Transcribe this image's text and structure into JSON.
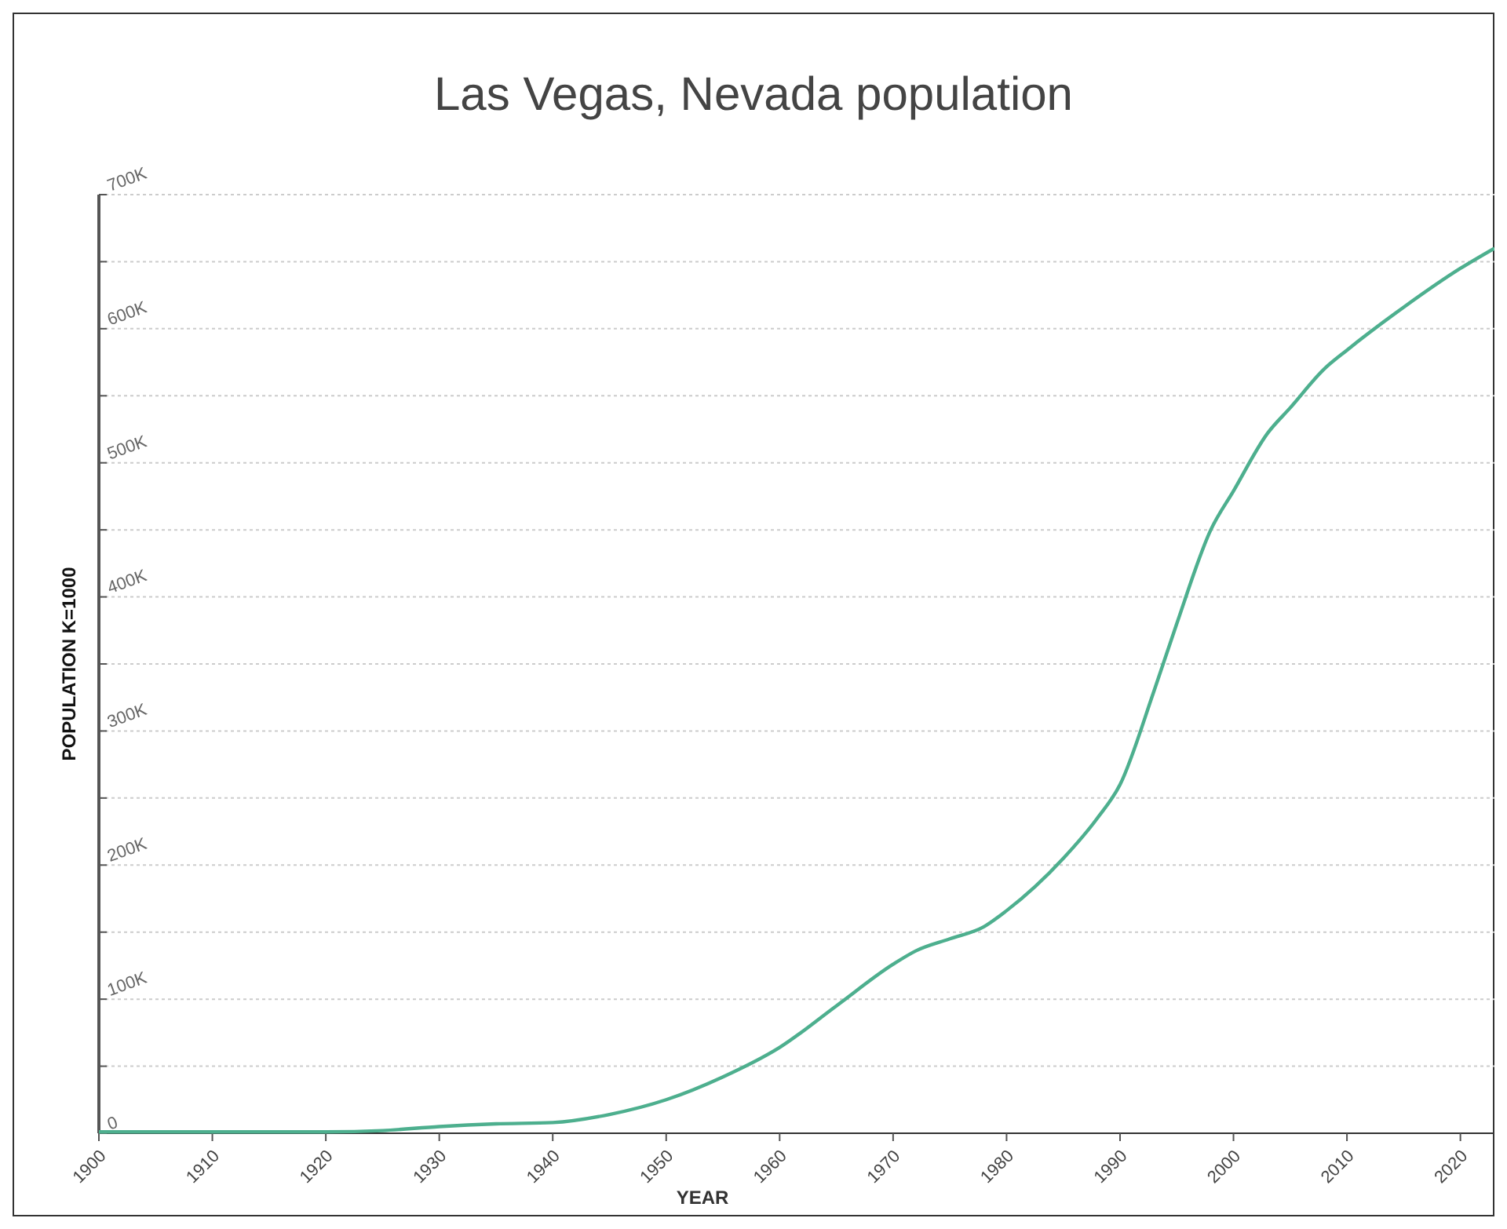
{
  "chart_data": {
    "type": "line",
    "title": "Las Vegas, Nevada population",
    "xlabel": "YEAR",
    "ylabel": "POPULATION  K=1000",
    "x": [
      1900,
      1910,
      1920,
      1925,
      1930,
      1935,
      1940,
      1945,
      1950,
      1955,
      1960,
      1965,
      1970,
      1972,
      1975,
      1978,
      1980,
      1985,
      1988,
      1990,
      1993,
      1995,
      1998,
      2000,
      2003,
      2005,
      2008,
      2010,
      2015,
      2020,
      2023
    ],
    "series": [
      {
        "color": "#4daf8e",
        "values": [
          1000,
          1000,
          1000,
          2000,
          5000,
          7000,
          8000,
          14000,
          25000,
          42000,
          64000,
          95000,
          126000,
          136000,
          145000,
          154000,
          166000,
          205000,
          235000,
          260000,
          330000,
          380000,
          450000,
          479000,
          522000,
          541000,
          570000,
          584000,
          616000,
          645000,
          660000
        ]
      }
    ],
    "xlim": [
      1900,
      2023
    ],
    "xticks": [
      {
        "value": 1900,
        "label": "1900"
      },
      {
        "value": 1910,
        "label": "1910"
      },
      {
        "value": 1920,
        "label": "1920"
      },
      {
        "value": 1930,
        "label": "1930"
      },
      {
        "value": 1940,
        "label": "1940"
      },
      {
        "value": 1950,
        "label": "1950"
      },
      {
        "value": 1960,
        "label": "1960"
      },
      {
        "value": 1970,
        "label": "1970"
      },
      {
        "value": 1980,
        "label": "1980"
      },
      {
        "value": 1990,
        "label": "1990"
      },
      {
        "value": 2000,
        "label": "2000"
      },
      {
        "value": 2010,
        "label": "2010"
      },
      {
        "value": 2020,
        "label": "2020"
      }
    ],
    "ylim": [
      0,
      700000
    ],
    "yticks": [
      0,
      {
        "value": 50000,
        "label": null
      },
      {
        "value": 100000,
        "label": "100K"
      },
      {
        "value": 150000,
        "label": null
      },
      {
        "value": 200000,
        "label": "200K"
      },
      {
        "value": 250000,
        "label": null
      },
      {
        "value": 300000,
        "label": "300K"
      },
      {
        "value": 350000,
        "label": null
      },
      {
        "value": 400000,
        "label": "400K"
      },
      {
        "value": 450000,
        "label": null
      },
      {
        "value": 500000,
        "label": "500K"
      },
      {
        "value": 550000,
        "label": null
      },
      {
        "value": 600000,
        "label": "600K"
      },
      {
        "value": 650000,
        "label": null
      },
      {
        "value": 700000,
        "label": "700K"
      }
    ],
    "grid": "y",
    "marker": "none",
    "line_style": "solid"
  }
}
